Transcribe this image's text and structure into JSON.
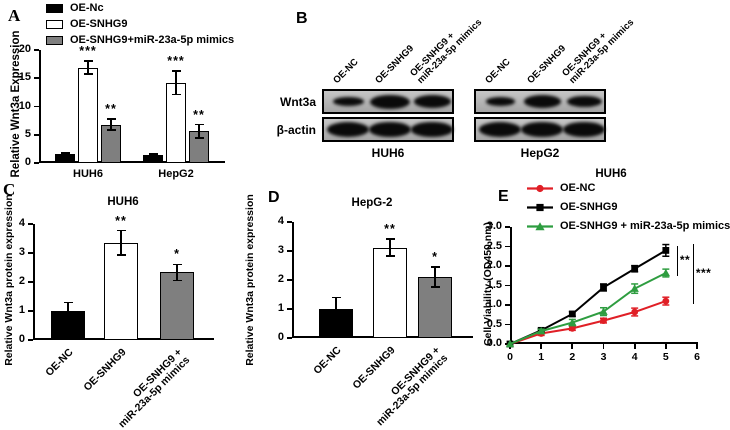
{
  "panels": {
    "a": "A",
    "b": "B",
    "c": "C",
    "d": "D",
    "e": "E"
  },
  "colors": {
    "black": "#000000",
    "white": "#ffffff",
    "gray": "#7f7f7f",
    "red": "#e01f26",
    "green": "#2e9d40",
    "axis": "#000000"
  },
  "blot": {
    "row_labels": [
      "Wnt3a",
      "β-actin"
    ],
    "groups": [
      {
        "name": "HUH6",
        "lanes": [
          [
            "OE-NC"
          ],
          [
            "OE-SNHG9"
          ],
          [
            "OE-SNHG9 +",
            "miR-23a-5p mimics"
          ]
        ],
        "wnt3a_band_strengths": [
          0.55,
          1.0,
          0.85
        ],
        "bactin_band_strengths": [
          1.0,
          0.95,
          0.9
        ]
      },
      {
        "name": "HepG2",
        "lanes": [
          [
            "OE-NC"
          ],
          [
            "OE-SNHG9"
          ],
          [
            "OE-SNHG9 +",
            "miR-23a-5p mimics"
          ]
        ],
        "wnt3a_band_strengths": [
          0.45,
          0.85,
          0.75
        ],
        "bactin_band_strengths": [
          1.0,
          0.95,
          0.95
        ]
      }
    ]
  },
  "chart_data": [
    {
      "id": "A",
      "type": "bar",
      "title": "",
      "ylabel": "Relative Wnt3a Expression",
      "ylim": [
        0,
        20
      ],
      "ytick_labels": [
        "0",
        "5",
        "10",
        "15",
        "20"
      ],
      "categories": [
        "HUH6",
        "HepG2"
      ],
      "legend_position": "top",
      "series": [
        {
          "name": "OE-Nc",
          "color": "#000000",
          "values": [
            1.6,
            1.4
          ],
          "errors": [
            0.2,
            0.2
          ],
          "sig": [
            "",
            ""
          ]
        },
        {
          "name": "OE-SNHG9",
          "color": "#ffffff",
          "values": [
            16.9,
            14.2
          ],
          "errors": [
            1.2,
            2.1
          ],
          "sig": [
            "***",
            "***"
          ]
        },
        {
          "name": "OE-SNHG9+miR-23a-5p mimics",
          "color": "#7f7f7f",
          "values": [
            6.8,
            5.6
          ],
          "errors": [
            1.0,
            1.2
          ],
          "sig": [
            "**",
            "**"
          ]
        }
      ]
    },
    {
      "id": "C",
      "type": "bar",
      "title": "HUH6",
      "ylabel": "Relative Wnt3a protein expression",
      "ylim": [
        0,
        4
      ],
      "ytick_labels": [
        "0",
        "1",
        "2",
        "3",
        "4"
      ],
      "categories": [
        [
          "OE-NC"
        ],
        [
          "OE-SNHG9"
        ],
        [
          "OE-SNHG9 +",
          "miR-23a-5p mimics"
        ]
      ],
      "values": [
        1.0,
        3.35,
        2.33
      ],
      "errors": [
        0.3,
        0.42,
        0.28
      ],
      "sig": [
        "",
        "**",
        "*"
      ],
      "bar_colors": [
        "#000000",
        "#ffffff",
        "#7f7f7f"
      ]
    },
    {
      "id": "D",
      "type": "bar",
      "title": "HepG-2",
      "ylabel": "Relative Wnt3a protein expression",
      "ylim": [
        0,
        4
      ],
      "ytick_labels": [
        "0",
        "1",
        "2",
        "3",
        "4"
      ],
      "categories": [
        [
          "OE-NC"
        ],
        [
          "OE-SNHG9"
        ],
        [
          "OE-SNHG9 +",
          "miR-23a-5p mimics"
        ]
      ],
      "values": [
        1.0,
        3.12,
        2.1
      ],
      "errors": [
        0.4,
        0.3,
        0.35
      ],
      "sig": [
        "",
        "**",
        "*"
      ],
      "bar_colors": [
        "#000000",
        "#ffffff",
        "#7f7f7f"
      ]
    },
    {
      "id": "E",
      "type": "line",
      "title": "HUH6",
      "ylabel": "Cell Viability (OD450 nm)",
      "xlim": [
        0,
        6
      ],
      "ylim": [
        0,
        3
      ],
      "ytick_labels": [
        "0.0",
        "0.5",
        "1.0",
        "1.5",
        "2.0",
        "2.5",
        "3.0"
      ],
      "xtick_labels": [
        "0",
        "1",
        "2",
        "3",
        "4",
        "5",
        "6"
      ],
      "x": [
        0,
        1,
        2,
        3,
        4,
        5
      ],
      "legend_position": "top-left",
      "series": [
        {
          "name": "OE-NC",
          "color": "#e01f26",
          "marker": "circle",
          "values": [
            0,
            0.27,
            0.4,
            0.6,
            0.82,
            1.1
          ],
          "errors": [
            0,
            0.05,
            0.05,
            0.06,
            0.1,
            0.1
          ]
        },
        {
          "name": "OE-SNHG9",
          "color": "#000000",
          "marker": "square",
          "values": [
            0,
            0.35,
            0.77,
            1.45,
            1.93,
            2.4
          ],
          "errors": [
            0,
            0.04,
            0.06,
            0.09,
            0.08,
            0.15
          ]
        },
        {
          "name": "OE-SNHG9 + miR-23a-5p mimics",
          "color": "#2e9d40",
          "marker": "triangle",
          "values": [
            0,
            0.33,
            0.55,
            0.83,
            1.42,
            1.82
          ],
          "errors": [
            0,
            0.05,
            0.08,
            0.1,
            0.12,
            0.1
          ]
        }
      ],
      "comparisons": [
        {
          "label": "**",
          "hi": 1,
          "lo": 2
        },
        {
          "label": "***",
          "hi": 1,
          "lo": 0
        }
      ]
    }
  ]
}
